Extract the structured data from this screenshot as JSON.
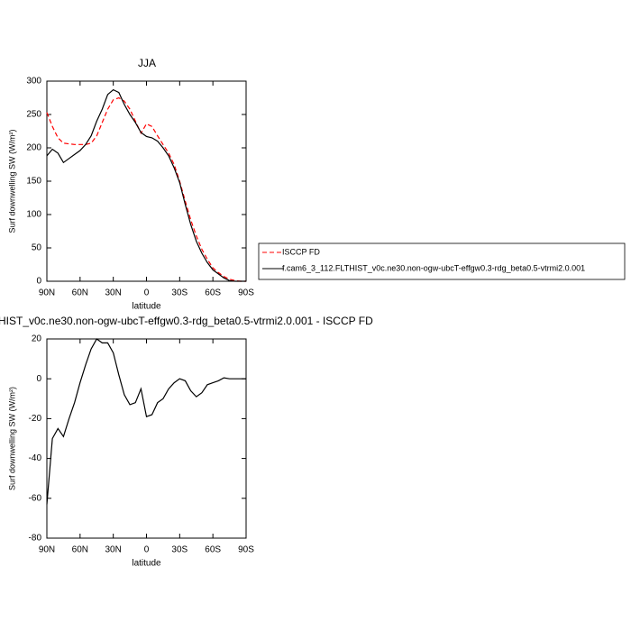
{
  "chart_data": [
    {
      "type": "line",
      "title": "JJA",
      "xlabel": "latitude",
      "ylabel": "Surf downwelling SW (W/m²)",
      "x": [
        90,
        85,
        80,
        75,
        70,
        65,
        60,
        55,
        50,
        45,
        40,
        35,
        30,
        25,
        20,
        15,
        10,
        5,
        0,
        -5,
        -10,
        -15,
        -20,
        -25,
        -30,
        -35,
        -40,
        -45,
        -50,
        -55,
        -60,
        -65,
        -70,
        -75,
        -80,
        -85,
        -90
      ],
      "xlim": [
        90,
        -90
      ],
      "xticks": [
        {
          "value": 90,
          "label": "90N"
        },
        {
          "value": 60,
          "label": "60N"
        },
        {
          "value": 30,
          "label": "30N"
        },
        0,
        {
          "value": -30,
          "label": "30S"
        },
        {
          "value": -60,
          "label": "60S"
        },
        {
          "value": -90,
          "label": "90S"
        }
      ],
      "ylim": [
        0,
        300
      ],
      "yticks": [
        0,
        50,
        100,
        150,
        200,
        250,
        300
      ],
      "series": [
        {
          "name": "ISCCP FD",
          "color": "#ff0000",
          "dash": true,
          "values": [
            253,
            232,
            215,
            207,
            206,
            205,
            205,
            205,
            207,
            218,
            238,
            258,
            272,
            275,
            270,
            258,
            240,
            222,
            236,
            232,
            218,
            205,
            192,
            175,
            150,
            120,
            92,
            68,
            48,
            33,
            20,
            13,
            7,
            3,
            1,
            0,
            0
          ]
        },
        {
          "name": "f.cam6_3_112.FLTHIST_v0c.ne30.non-ogw-ubcT-effgw0.3-rdg_beta0.5-vtrmi2.0.001",
          "color": "#000000",
          "dash": false,
          "values": [
            188,
            198,
            192,
            178,
            184,
            190,
            196,
            205,
            218,
            240,
            258,
            280,
            287,
            283,
            265,
            250,
            238,
            223,
            217,
            215,
            210,
            200,
            188,
            170,
            148,
            115,
            85,
            60,
            42,
            28,
            17,
            11,
            5,
            1,
            0,
            0,
            0
          ]
        }
      ]
    },
    {
      "type": "line",
      "title": "HIST_v0c.ne30.non-ogw-ubcT-effgw0.3-rdg_beta0.5-vtrmi2.0.001 - ISCCP FD",
      "xlabel": "latitude",
      "ylabel": "Surf downwelling SW (W/m²)",
      "x": [
        90,
        85,
        80,
        75,
        70,
        65,
        60,
        55,
        50,
        45,
        40,
        35,
        30,
        25,
        20,
        15,
        10,
        5,
        0,
        -5,
        -10,
        -15,
        -20,
        -25,
        -30,
        -35,
        -40,
        -45,
        -50,
        -55,
        -60,
        -65,
        -70,
        -75,
        -80,
        -85,
        -90
      ],
      "xlim": [
        90,
        -90
      ],
      "xticks": [
        {
          "value": 90,
          "label": "90N"
        },
        {
          "value": 60,
          "label": "60N"
        },
        {
          "value": 30,
          "label": "30N"
        },
        0,
        {
          "value": -30,
          "label": "30S"
        },
        {
          "value": -60,
          "label": "60S"
        },
        {
          "value": -90,
          "label": "90S"
        }
      ],
      "ylim": [
        -80,
        20
      ],
      "yticks": [
        -80,
        -60,
        -40,
        -20,
        0,
        20
      ],
      "series": [
        {
          "color": "#000000",
          "dash": false,
          "values": [
            -63,
            -30,
            -25,
            -29,
            -20,
            -12,
            -2,
            7,
            15,
            20,
            18,
            18,
            13,
            2,
            -8,
            -13,
            -12,
            -5,
            -19,
            -18,
            -12,
            -10,
            -5,
            -2,
            0,
            -1,
            -6,
            -9,
            -7,
            -3,
            -2,
            -1,
            0.5,
            0,
            0,
            0,
            0
          ]
        }
      ]
    }
  ]
}
